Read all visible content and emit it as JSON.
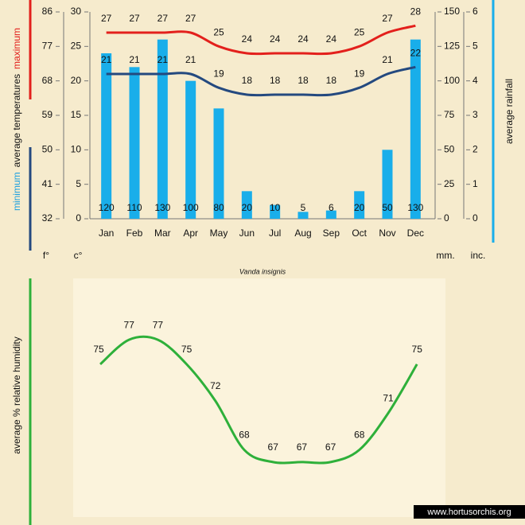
{
  "chart_data": [
    {
      "type": "climate",
      "subtitle": "Vanda insignis",
      "categories": [
        "Jan",
        "Feb",
        "Mar",
        "Apr",
        "May",
        "Jun",
        "Jul",
        "Aug",
        "Sep",
        "Oct",
        "Nov",
        "Dec"
      ],
      "ylabel": "average  temperatures",
      "y2label": "average rainfall",
      "ylim": [
        0,
        30
      ],
      "yticks": [
        0,
        5,
        10,
        15,
        20,
        25,
        30
      ],
      "yunit": "c°",
      "ylim_f": [
        32,
        86
      ],
      "yticks_f": [
        32,
        41,
        50,
        59,
        68,
        77,
        86
      ],
      "yunit_f": "f°",
      "y2lim": [
        0,
        150
      ],
      "y2ticks": [
        0,
        25,
        50,
        75,
        100,
        125,
        150
      ],
      "y2unit": "mm.",
      "y2lim_in": [
        0,
        6
      ],
      "y2ticks_in": [
        0,
        1,
        2,
        3,
        4,
        5,
        6
      ],
      "y2unit_in": "inc.",
      "series": [
        {
          "type": "bar",
          "axis": "y2",
          "color": "#19aeea",
          "values": [
            120,
            110,
            130,
            100,
            80,
            20,
            10,
            5,
            6,
            20,
            50,
            130
          ]
        },
        {
          "type": "line",
          "name": "maximum",
          "color": "#e3201c",
          "values": [
            27,
            27,
            27,
            27,
            25,
            24,
            24,
            24,
            24,
            25,
            27,
            28
          ]
        },
        {
          "type": "line",
          "name": "minimum",
          "color": "#24497f",
          "values": [
            21,
            21,
            21,
            21,
            19,
            18,
            18,
            18,
            18,
            19,
            21,
            22
          ]
        }
      ]
    },
    {
      "type": "line",
      "ylabel": "average %  relative humidity",
      "ylim": [
        64,
        80
      ],
      "color": "#2eb03a",
      "values": [
        75,
        77,
        77,
        75,
        72,
        68,
        67,
        67,
        67,
        68,
        71,
        75
      ],
      "watermark": "www.hortusorchis.org"
    }
  ]
}
